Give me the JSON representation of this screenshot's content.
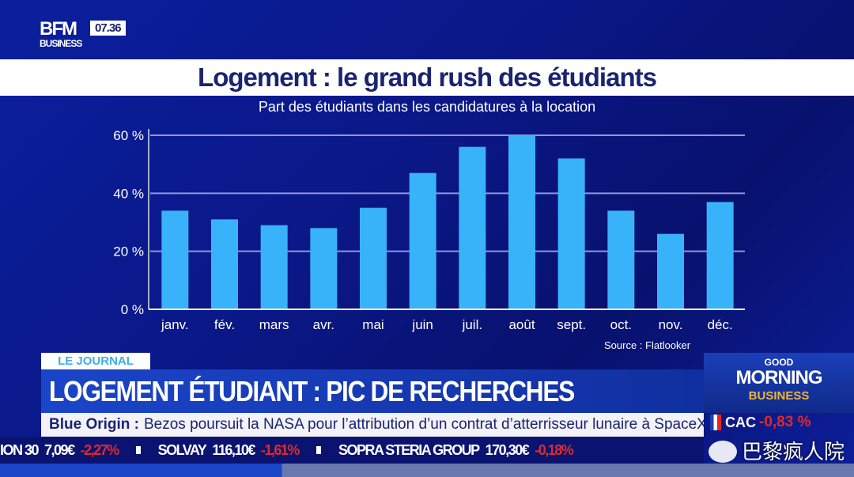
{
  "header": {
    "logo_main": "BFM",
    "logo_sub": "BUSINESS",
    "clock": "07.36"
  },
  "chart_data": {
    "type": "bar",
    "title": "Logement : le grand rush des étudiants",
    "subtitle": "Part des étudiants dans les candidatures à la location",
    "categories": [
      "janv.",
      "fév.",
      "mars",
      "avr.",
      "mai",
      "juin",
      "juil.",
      "août",
      "sept.",
      "oct.",
      "nov.",
      "déc."
    ],
    "values": [
      34,
      31,
      29,
      28,
      35,
      47,
      56,
      60,
      52,
      34,
      26,
      37
    ],
    "unit": "%",
    "ylim": [
      0,
      60
    ],
    "yticks": [
      "0 %",
      "20 %",
      "40 %",
      "60 %"
    ],
    "grid": true,
    "source": "Source : Flatlooker",
    "colors": {
      "bar": "#38b2f8",
      "grid": "#8f95e0"
    }
  },
  "lower_third": {
    "tag": "LE JOURNAL",
    "headline": "LOGEMENT ÉTUDIANT : PIC DE RECHERCHES",
    "show_logo": {
      "line1": "GOOD",
      "line2": "MORNING",
      "line3": "BUSINESS"
    }
  },
  "news_ticker": {
    "topic": "Blue Origin :",
    "text": "Bezos poursuit la NASA pour l’attribution d’un contrat d’atterrisseur lunaire à SpaceX"
  },
  "stock_ticker": {
    "items": [
      {
        "name": "ION 30",
        "price": "7,09€",
        "change": "-2,27%"
      },
      {
        "name": "SOLVAY",
        "price": "116,10€",
        "change": "-1,61%"
      },
      {
        "name": "SOPRA STERIA GROUP",
        "price": "170,30€",
        "change": "-0,18%"
      }
    ],
    "index": {
      "name": "CAC",
      "change": "-0,83 %"
    }
  },
  "watermark": "巴黎疯人院"
}
